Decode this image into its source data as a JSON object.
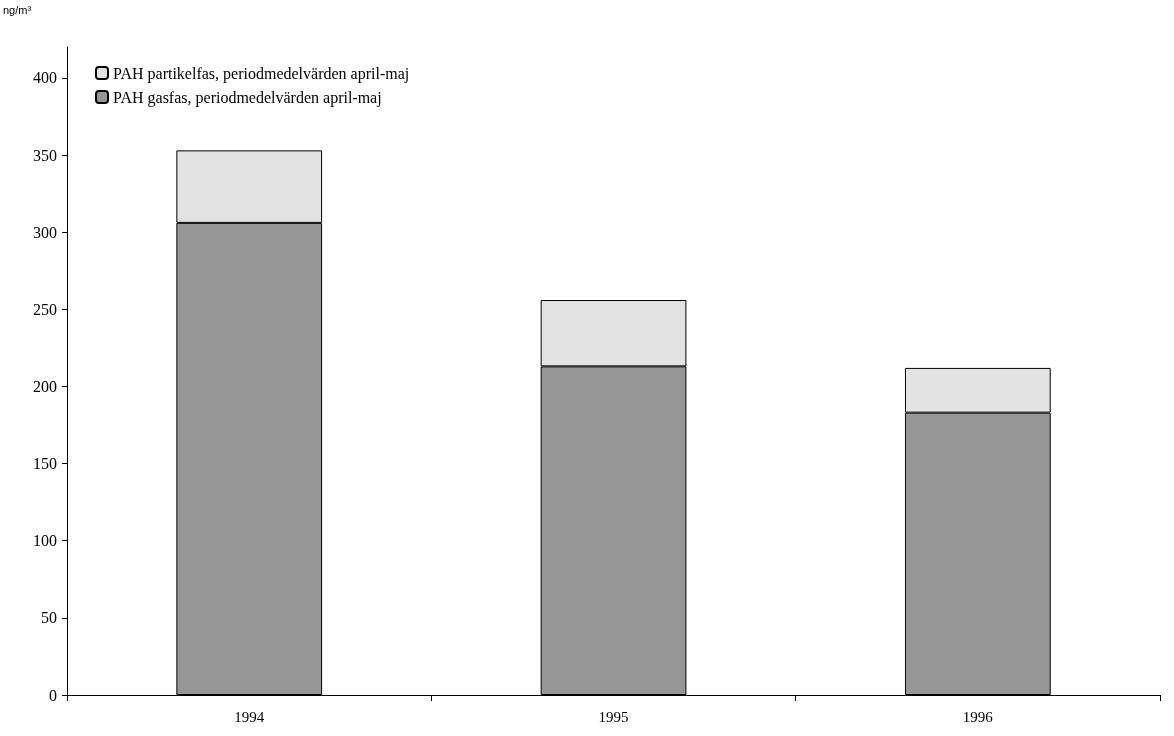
{
  "chart_data": {
    "type": "bar",
    "ylabel": "ng/m³",
    "categories": [
      "1994",
      "1995",
      "1996"
    ],
    "stacked": true,
    "series": [
      {
        "name": "PAH gasfas, periodmedelvärden april-maj",
        "color": "#969696",
        "values": [
          306,
          213,
          183
        ]
      },
      {
        "name": "PAH partikelfas, periodmedelvärden april-maj",
        "color": "#e3e3e3",
        "values": [
          47,
          43,
          29
        ]
      }
    ],
    "ylim": [
      0,
      420
    ],
    "yticks": [
      0,
      50,
      100,
      150,
      200,
      250,
      300,
      350,
      400
    ],
    "grid": false,
    "legend": "top left"
  }
}
